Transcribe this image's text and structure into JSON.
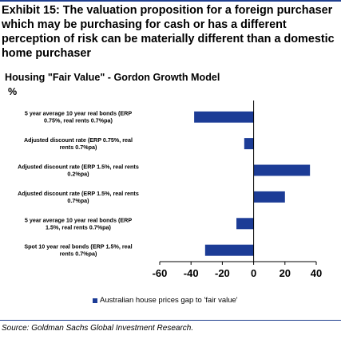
{
  "exhibit_title": "Exhibit 15: The valuation proposition for a foreign purchaser which may be purchasing for cash or has a different perception of risk can be materially different than a domestic home purchaser",
  "source": "Source: Goldman Sachs Global Investment Research.",
  "colors": {
    "bar": "#1c3c96",
    "rule": "#1f3f8f"
  },
  "chart_data": {
    "type": "bar",
    "orientation": "horizontal",
    "title": "Housing \"Fair Value\" - Gordon Growth Model",
    "unit_label": "%",
    "categories": [
      [
        "5 year average 10 year real bonds  (ERP",
        "0.75%, real rents 0.7%pa)"
      ],
      [
        "Adjusted discount rate (ERP 0.75%, real",
        "rents 0.7%pa)"
      ],
      [
        "Adjusted discount rate (ERP 1.5%, real rents",
        "0.2%pa)"
      ],
      [
        "Adjusted discount rate (ERP 1.5%, real rents",
        "0.7%pa)"
      ],
      [
        "5 year average 10 year real bonds  (ERP",
        "1.5%, real rents 0.7%pa)"
      ],
      [
        "Spot 10 year real bonds (ERP 1.5%, real",
        "rents 0.7%pa)"
      ]
    ],
    "series": [
      {
        "name": "Australian house prices gap to 'fair value'",
        "values": [
          -38,
          -6,
          36,
          20,
          -11,
          -31
        ]
      }
    ],
    "xlim": [
      -60,
      40
    ],
    "xticks": [
      "-60",
      "-40",
      "-20",
      "0",
      "20",
      "40"
    ],
    "legend": "bottom",
    "grid": false
  }
}
